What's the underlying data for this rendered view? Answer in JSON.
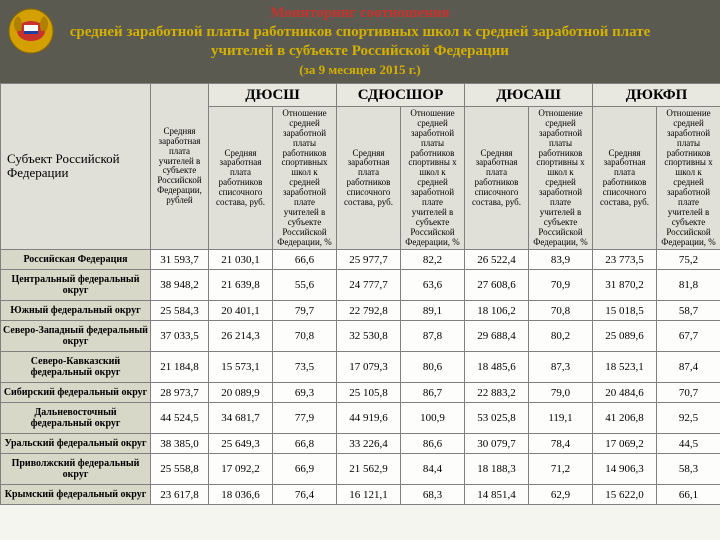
{
  "title_line1": "Мониторинг соотношения",
  "title_line2": "средней заработной платы работников спортивных школ к средней заработной плате учителей в субъекте Российской Федерации",
  "title_sub": "(за 9 месяцев 2015 г.)",
  "col_subject": "Субъект\nРоссийской Федерации",
  "col_teacher_salary": "Средняя заработная плата учителей в субъекте Российской Федерации, рублей",
  "groups": [
    "ДЮСШ",
    "СДЮСШОР",
    "ДЮСАШ",
    "ДЮКФП"
  ],
  "col_salary": "Средняя заработная плата работников списочного состава, руб.",
  "col_ratio": "Отношение средней заработной платы работников спортивных школ к средней заработной плате учителей в субъекте Российской Федерации, %",
  "col_ratio_x": "Отношение средней заработной платы работников спортивны х школ к средней заработной плате учителей в субъекте Российской Федерации, %",
  "rows": [
    {
      "name": "Российская Федерация",
      "teach": "31 593,7",
      "v": [
        "21 030,1",
        "66,6",
        "25 977,7",
        "82,2",
        "26 522,4",
        "83,9",
        "23 773,5",
        "75,2"
      ]
    },
    {
      "name": "Центральный федеральный округ",
      "teach": "38 948,2",
      "v": [
        "21 639,8",
        "55,6",
        "24 777,7",
        "63,6",
        "27 608,6",
        "70,9",
        "31 870,2",
        "81,8"
      ]
    },
    {
      "name": "Южный федеральный округ",
      "teach": "25 584,3",
      "v": [
        "20 401,1",
        "79,7",
        "22 792,8",
        "89,1",
        "18 106,2",
        "70,8",
        "15 018,5",
        "58,7"
      ]
    },
    {
      "name": "Северо-Западный федеральный округ",
      "teach": "37 033,5",
      "v": [
        "26 214,3",
        "70,8",
        "32 530,8",
        "87,8",
        "29 688,4",
        "80,2",
        "25 089,6",
        "67,7"
      ]
    },
    {
      "name": "Северо-Кавказский федеральный округ",
      "teach": "21 184,8",
      "v": [
        "15 573,1",
        "73,5",
        "17 079,3",
        "80,6",
        "18 485,6",
        "87,3",
        "18 523,1",
        "87,4"
      ]
    },
    {
      "name": "Сибирский федеральный округ",
      "teach": "28 973,7",
      "v": [
        "20 089,9",
        "69,3",
        "25 105,8",
        "86,7",
        "22 883,2",
        "79,0",
        "20 484,6",
        "70,7"
      ]
    },
    {
      "name": "Дальневосточный федеральный округ",
      "teach": "44 524,5",
      "v": [
        "34 681,7",
        "77,9",
        "44 919,6",
        "100,9",
        "53 025,8",
        "119,1",
        "41 206,8",
        "92,5"
      ]
    },
    {
      "name": "Уральский федеральный округ",
      "teach": "38 385,0",
      "v": [
        "25 649,3",
        "66,8",
        "33 226,4",
        "86,6",
        "30 079,7",
        "78,4",
        "17 069,2",
        "44,5"
      ]
    },
    {
      "name": "Приволжский федеральный округ",
      "teach": "25 558,8",
      "v": [
        "17 092,2",
        "66,9",
        "21 562,9",
        "84,4",
        "18 188,3",
        "71,2",
        "14 906,3",
        "58,3"
      ]
    },
    {
      "name": "Крымский федеральный округ",
      "teach": "23 617,8",
      "v": [
        "18 036,6",
        "76,4",
        "16 121,1",
        "68,3",
        "14 851,4",
        "62,9",
        "15 622,0",
        "66,1"
      ]
    }
  ]
}
